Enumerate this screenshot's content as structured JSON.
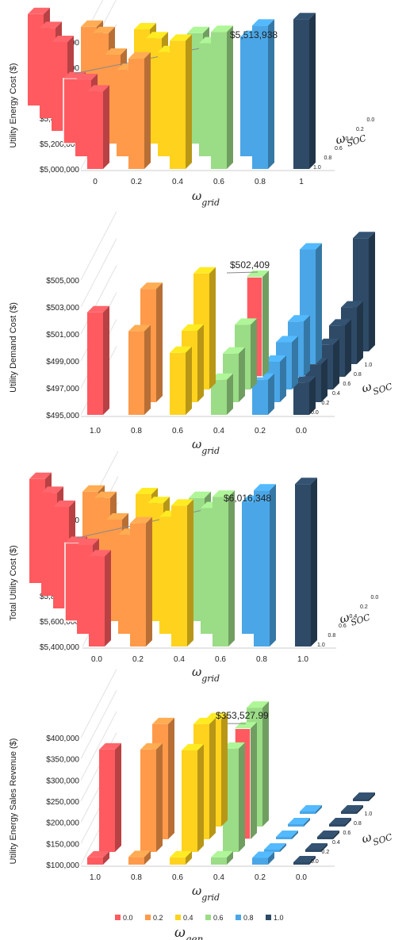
{
  "colors": {
    "0.0": "#ff5a5f",
    "0.2": "#ff9a4a",
    "0.4": "#ffd21e",
    "0.6": "#9bdc87",
    "0.8": "#4aa6e6",
    "1.0": "#2e4a66"
  },
  "legend": {
    "entries": [
      "0.0",
      "0.2",
      "0.4",
      "0.6",
      "0.8",
      "1.0"
    ],
    "symbol": "ω",
    "symbol_sub": "gen"
  },
  "chart_data": [
    {
      "type": "bar3d",
      "ylabel": "Utility Energy Cost ($)",
      "x_symbol": "ω",
      "x_sub": "grid",
      "z_symbol": "ω",
      "z_sub": "SOC",
      "x_ticks": [
        "0",
        "0.2",
        "0.4",
        "0.6",
        "0.8",
        "1"
      ],
      "z_ticks": [
        "1.0",
        "0.8",
        "0.6",
        "0.4",
        "0.2",
        "0.0"
      ],
      "y_ticks": [
        "$5,000,000",
        "$5,200,000",
        "$5,400,000",
        "$5,600,000",
        "$5,800,000",
        "$6,000,000"
      ],
      "ylim": [
        5000000,
        6000000
      ],
      "annotation": "$5,513,938",
      "values": [
        [
          5610000,
          5870000,
          6010000,
          6080000,
          6130000,
          6180000
        ],
        [
          5600000,
          5680000,
          5820000,
          5890000,
          5940000,
          null
        ],
        [
          5513938,
          5700000,
          5830000,
          5870000,
          null,
          null
        ],
        [
          5700000,
          5770000,
          5800000,
          null,
          null,
          null
        ],
        [
          5710000,
          5720000,
          null,
          null,
          null,
          null
        ],
        [
          5720000,
          null,
          null,
          null,
          null,
          null
        ]
      ]
    },
    {
      "type": "bar3d",
      "ylabel": "Utility Demand Cost ($)",
      "x_symbol": "ω",
      "x_sub": "grid",
      "z_symbol": "ω",
      "z_sub": "SOC",
      "x_ticks": [
        "1.0",
        "0.8",
        "0.6",
        "0.4",
        "0.2",
        "0.0"
      ],
      "z_ticks": [
        "0.0",
        "0.2",
        "0.4",
        "0.6",
        "0.8",
        "1.0"
      ],
      "y_ticks": [
        "$495,000",
        "$497,000",
        "$499,000",
        "$501,000",
        "$503,000",
        "$505,000"
      ],
      "ylim": [
        495000,
        505000
      ],
      "annotation": "$502,409",
      "values": [
        [
          502600,
          null,
          null,
          null,
          null,
          null
        ],
        [
          501200,
          503400,
          null,
          null,
          null,
          null
        ],
        [
          499600,
          500300,
          503600,
          null,
          null,
          null
        ],
        [
          497600,
          498600,
          499800,
          502409,
          null,
          null
        ],
        [
          497600,
          498000,
          498500,
          499100,
          503500,
          null
        ],
        [
          497400,
          497800,
          498300,
          498800,
          499200,
          503400
        ]
      ]
    },
    {
      "type": "bar3d",
      "ylabel": "Total Utility Cost ($)",
      "x_symbol": "ω",
      "x_sub": "grid",
      "z_symbol": "ω",
      "z_sub": "SOC",
      "x_ticks": [
        "0.0",
        "0.2",
        "0.4",
        "0.6",
        "0.8",
        "1.0"
      ],
      "z_ticks": [
        "1.0",
        "0.8",
        "0.6",
        "0.4",
        "0.2",
        "0.0"
      ],
      "y_ticks": [
        "$5,400,000",
        "$5,600,000",
        "$5,800,000",
        "$6,000,000",
        "$6,200,000",
        "$6,400,000"
      ],
      "ylim": [
        5400000,
        6400000
      ],
      "annotation": "$6,016,348",
      "values": [
        [
          6110000,
          6370000,
          6510000,
          6580000,
          6630000,
          6680000
        ],
        [
          6100000,
          6180000,
          6320000,
          6390000,
          6440000,
          null
        ],
        [
          6016348,
          6200000,
          6330000,
          6370000,
          null,
          null
        ],
        [
          6200000,
          6270000,
          6300000,
          null,
          null,
          null
        ],
        [
          6210000,
          6220000,
          null,
          null,
          null,
          null
        ],
        [
          6220000,
          null,
          null,
          null,
          null,
          null
        ]
      ]
    },
    {
      "type": "bar3d",
      "ylabel": "Utility Energy Sales Revenue ($)",
      "x_symbol": "ω",
      "x_sub": "grid",
      "z_symbol": "ω",
      "z_sub": "SOC",
      "x_ticks": [
        "1.0",
        "0.8",
        "0.6",
        "0.4",
        "0.2",
        "0.0"
      ],
      "z_ticks": [
        "0.0",
        "0.2",
        "0.4",
        "0.6",
        "0.8",
        "1.0"
      ],
      "y_ticks": [
        "$100,000",
        "$150,000",
        "$200,000",
        "$250,000",
        "$300,000",
        "$350,000",
        "$400,000"
      ],
      "ylim": [
        100000,
        400000
      ],
      "annotation": "$353,527.99",
      "values": [
        [
          117000,
          342000,
          null,
          null,
          null,
          null
        ],
        [
          118000,
          342000,
          372000,
          null,
          null,
          null
        ],
        [
          117000,
          340000,
          372000,
          353528,
          null,
          null
        ],
        [
          117000,
          344000,
          362000,
          381000,
          null,
          null
        ],
        [
          116000,
          100000,
          100000,
          100000,
          100000,
          null
        ],
        [
          100000,
          100000,
          100000,
          100000,
          100000,
          100000
        ]
      ]
    }
  ]
}
